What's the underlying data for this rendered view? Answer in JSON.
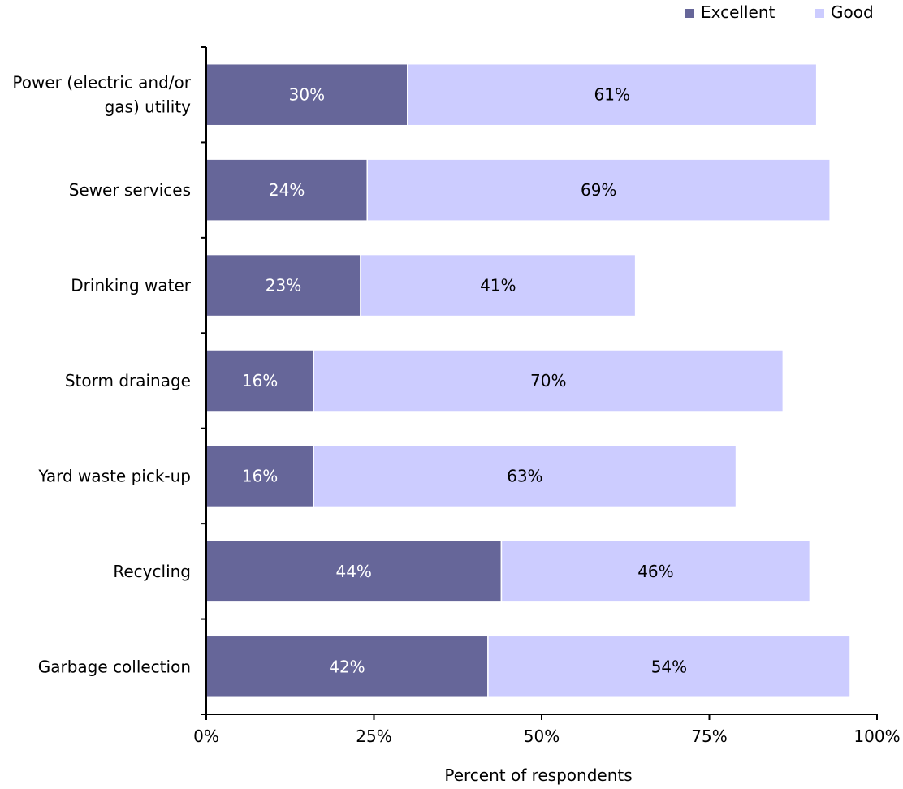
{
  "chart_data": {
    "type": "bar",
    "orientation": "horizontal",
    "stacked": true,
    "categories": [
      [
        "Power (electric and/or",
        "gas) utility"
      ],
      [
        "Sewer services"
      ],
      [
        "Drinking water"
      ],
      [
        "Storm drainage"
      ],
      [
        "Yard waste pick-up"
      ],
      [
        "Recycling"
      ],
      [
        "Garbage collection"
      ]
    ],
    "series": [
      {
        "name": "Excellent",
        "values": [
          30,
          24,
          23,
          16,
          16,
          44,
          42
        ],
        "color": "#666699",
        "label_color": "#ffffff"
      },
      {
        "name": "Good",
        "values": [
          61,
          69,
          41,
          70,
          63,
          46,
          54
        ],
        "color": "#ccccff",
        "label_color": "#000000"
      }
    ],
    "data_label_suffix": "%",
    "xlabel": "Percent of respondents",
    "xlim": [
      0,
      100
    ],
    "xticks": [
      0,
      25,
      50,
      75,
      100
    ],
    "xtick_labels": [
      "0%",
      "25%",
      "50%",
      "75%",
      "100%"
    ],
    "legend_position": "top-right",
    "grid": false
  }
}
